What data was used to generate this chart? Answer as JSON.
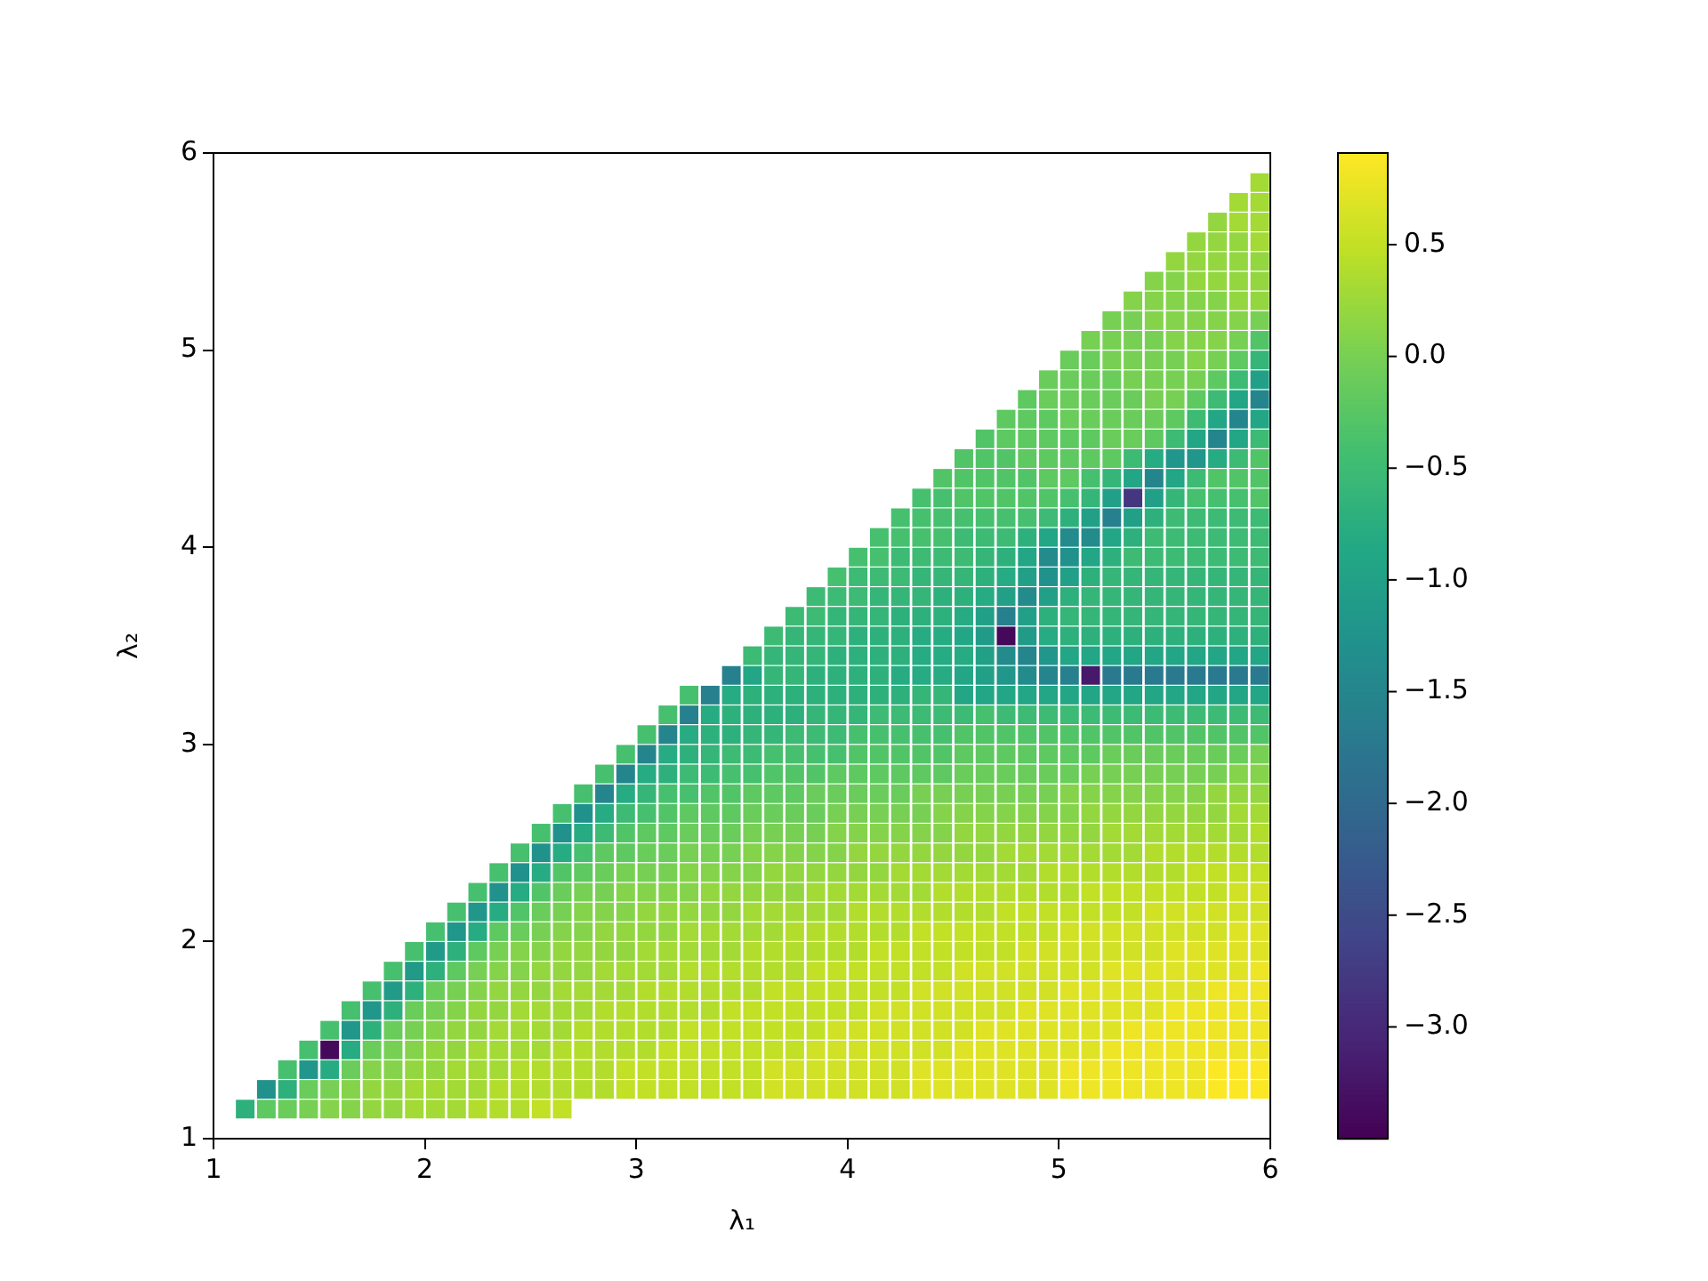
{
  "chart_data": {
    "type": "heatmap",
    "xlabel": "λ₁",
    "ylabel": "λ₂",
    "xlim": [
      1,
      6
    ],
    "ylim": [
      1,
      6
    ],
    "xticks": [
      1,
      2,
      3,
      4,
      5,
      6
    ],
    "yticks": [
      1,
      2,
      3,
      4,
      5,
      6
    ],
    "clim": [
      -3.5,
      0.91
    ],
    "cticks": [
      {
        "value": -3,
        "label": "−3.0"
      },
      {
        "value": -2.5,
        "label": "−2.5"
      },
      {
        "value": -2,
        "label": "−2.0"
      },
      {
        "value": -1.5,
        "label": "−1.5"
      },
      {
        "value": -1,
        "label": "−1.0"
      },
      {
        "value": -0.5,
        "label": "−0.5"
      },
      {
        "value": 0,
        "label": "0.0"
      },
      {
        "value": 0.5,
        "label": "0.5"
      }
    ],
    "x": [
      1.15,
      1.25,
      1.35,
      1.45,
      1.55,
      1.65,
      1.75,
      1.85,
      1.95,
      2.05,
      2.15,
      2.25,
      2.35,
      2.45,
      2.55,
      2.65,
      2.75,
      2.85,
      2.95,
      3.05,
      3.15,
      3.25,
      3.35,
      3.45,
      3.55,
      3.65,
      3.75,
      3.85,
      3.95,
      4.05,
      4.15,
      4.25,
      4.35,
      4.45,
      4.55,
      4.65,
      4.75,
      4.85,
      4.95,
      5.05,
      5.15,
      5.25,
      5.35,
      5.45,
      5.55,
      5.65,
      5.75,
      5.85,
      5.95
    ],
    "y": [
      5.85,
      5.75,
      5.65,
      5.55,
      5.45,
      5.35,
      5.25,
      5.15,
      5.05,
      4.95,
      4.85,
      4.75,
      4.65,
      4.55,
      4.45,
      4.35,
      4.25,
      4.15,
      4.05,
      3.95,
      3.85,
      3.75,
      3.65,
      3.55,
      3.45,
      3.35,
      3.25,
      3.15,
      3.05,
      2.95,
      2.85,
      2.75,
      2.65,
      2.55,
      2.45,
      2.35,
      2.25,
      2.15,
      2.05,
      1.95,
      1.85,
      1.75,
      1.65,
      1.55,
      1.45,
      1.35,
      1.25,
      1.15
    ],
    "cells": [
      [
        null,
        null,
        null,
        null,
        null,
        null,
        null,
        null,
        null,
        null,
        null,
        null,
        null,
        null,
        null,
        null,
        null,
        null,
        null,
        null,
        null,
        null,
        null,
        null,
        null,
        null,
        null,
        null,
        null,
        null,
        null,
        null,
        null,
        null,
        null,
        null,
        null,
        null,
        null,
        null,
        null,
        null,
        null,
        null,
        null,
        null,
        null,
        null,
        0.3
      ],
      [
        null,
        null,
        null,
        null,
        null,
        null,
        null,
        null,
        null,
        null,
        null,
        null,
        null,
        null,
        null,
        null,
        null,
        null,
        null,
        null,
        null,
        null,
        null,
        null,
        null,
        null,
        null,
        null,
        null,
        null,
        null,
        null,
        null,
        null,
        null,
        null,
        null,
        null,
        null,
        null,
        null,
        null,
        null,
        null,
        null,
        null,
        null,
        0.3,
        0.3
      ],
      [
        null,
        null,
        null,
        null,
        null,
        null,
        null,
        null,
        null,
        null,
        null,
        null,
        null,
        null,
        null,
        null,
        null,
        null,
        null,
        null,
        null,
        null,
        null,
        null,
        null,
        null,
        null,
        null,
        null,
        null,
        null,
        null,
        null,
        null,
        null,
        null,
        null,
        null,
        null,
        null,
        null,
        null,
        null,
        null,
        null,
        null,
        0.2,
        0.3,
        0.3
      ],
      [
        null,
        null,
        null,
        null,
        null,
        null,
        null,
        null,
        null,
        null,
        null,
        null,
        null,
        null,
        null,
        null,
        null,
        null,
        null,
        null,
        null,
        null,
        null,
        null,
        null,
        null,
        null,
        null,
        null,
        null,
        null,
        null,
        null,
        null,
        null,
        null,
        null,
        null,
        null,
        null,
        null,
        null,
        null,
        null,
        null,
        0.2,
        0.2,
        0.2,
        0.3
      ],
      [
        null,
        null,
        null,
        null,
        null,
        null,
        null,
        null,
        null,
        null,
        null,
        null,
        null,
        null,
        null,
        null,
        null,
        null,
        null,
        null,
        null,
        null,
        null,
        null,
        null,
        null,
        null,
        null,
        null,
        null,
        null,
        null,
        null,
        null,
        null,
        null,
        null,
        null,
        null,
        null,
        null,
        null,
        null,
        null,
        0.2,
        0.2,
        0.2,
        0.2,
        0.2
      ],
      [
        null,
        null,
        null,
        null,
        null,
        null,
        null,
        null,
        null,
        null,
        null,
        null,
        null,
        null,
        null,
        null,
        null,
        null,
        null,
        null,
        null,
        null,
        null,
        null,
        null,
        null,
        null,
        null,
        null,
        null,
        null,
        null,
        null,
        null,
        null,
        null,
        null,
        null,
        null,
        null,
        null,
        null,
        null,
        0.1,
        0.1,
        0.2,
        0.2,
        0.2,
        0.2
      ],
      [
        null,
        null,
        null,
        null,
        null,
        null,
        null,
        null,
        null,
        null,
        null,
        null,
        null,
        null,
        null,
        null,
        null,
        null,
        null,
        null,
        null,
        null,
        null,
        null,
        null,
        null,
        null,
        null,
        null,
        null,
        null,
        null,
        null,
        null,
        null,
        null,
        null,
        null,
        null,
        null,
        null,
        null,
        0.1,
        0.1,
        0.1,
        0.1,
        0.1,
        0.2,
        0.2
      ],
      [
        null,
        null,
        null,
        null,
        null,
        null,
        null,
        null,
        null,
        null,
        null,
        null,
        null,
        null,
        null,
        null,
        null,
        null,
        null,
        null,
        null,
        null,
        null,
        null,
        null,
        null,
        null,
        null,
        null,
        null,
        null,
        null,
        null,
        null,
        null,
        null,
        null,
        null,
        null,
        null,
        null,
        0.0,
        0.0,
        0.1,
        0.1,
        0.1,
        0.1,
        0.1,
        0.0
      ],
      [
        null,
        null,
        null,
        null,
        null,
        null,
        null,
        null,
        null,
        null,
        null,
        null,
        null,
        null,
        null,
        null,
        null,
        null,
        null,
        null,
        null,
        null,
        null,
        null,
        null,
        null,
        null,
        null,
        null,
        null,
        null,
        null,
        null,
        null,
        null,
        null,
        null,
        null,
        null,
        null,
        0.0,
        0.0,
        0.0,
        0.0,
        0.1,
        0.1,
        0.1,
        0.0,
        -0.3
      ],
      [
        null,
        null,
        null,
        null,
        null,
        null,
        null,
        null,
        null,
        null,
        null,
        null,
        null,
        null,
        null,
        null,
        null,
        null,
        null,
        null,
        null,
        null,
        null,
        null,
        null,
        null,
        null,
        null,
        null,
        null,
        null,
        null,
        null,
        null,
        null,
        null,
        null,
        null,
        null,
        -0.1,
        -0.1,
        0.0,
        0.0,
        0.0,
        0.0,
        0.1,
        0.0,
        -0.2,
        -0.6
      ],
      [
        null,
        null,
        null,
        null,
        null,
        null,
        null,
        null,
        null,
        null,
        null,
        null,
        null,
        null,
        null,
        null,
        null,
        null,
        null,
        null,
        null,
        null,
        null,
        null,
        null,
        null,
        null,
        null,
        null,
        null,
        null,
        null,
        null,
        null,
        null,
        null,
        null,
        null,
        -0.1,
        -0.1,
        -0.1,
        -0.1,
        0.0,
        0.0,
        0.0,
        0.0,
        -0.2,
        -0.5,
        -1.0
      ],
      [
        null,
        null,
        null,
        null,
        null,
        null,
        null,
        null,
        null,
        null,
        null,
        null,
        null,
        null,
        null,
        null,
        null,
        null,
        null,
        null,
        null,
        null,
        null,
        null,
        null,
        null,
        null,
        null,
        null,
        null,
        null,
        null,
        null,
        null,
        null,
        null,
        null,
        -0.2,
        -0.1,
        -0.1,
        -0.1,
        -0.1,
        -0.1,
        0.0,
        0.0,
        -0.2,
        -0.5,
        -0.9,
        -1.5
      ],
      [
        null,
        null,
        null,
        null,
        null,
        null,
        null,
        null,
        null,
        null,
        null,
        null,
        null,
        null,
        null,
        null,
        null,
        null,
        null,
        null,
        null,
        null,
        null,
        null,
        null,
        null,
        null,
        null,
        null,
        null,
        null,
        null,
        null,
        null,
        null,
        null,
        -0.2,
        -0.2,
        -0.2,
        -0.1,
        -0.1,
        -0.1,
        -0.1,
        -0.1,
        -0.2,
        -0.5,
        -0.9,
        -1.5,
        -0.9
      ],
      [
        null,
        null,
        null,
        null,
        null,
        null,
        null,
        null,
        null,
        null,
        null,
        null,
        null,
        null,
        null,
        null,
        null,
        null,
        null,
        null,
        null,
        null,
        null,
        null,
        null,
        null,
        null,
        null,
        null,
        null,
        null,
        null,
        null,
        null,
        null,
        -0.3,
        -0.2,
        -0.2,
        -0.2,
        -0.2,
        -0.2,
        -0.1,
        -0.1,
        -0.2,
        -0.5,
        -0.9,
        -1.5,
        -0.9,
        -0.5
      ],
      [
        null,
        null,
        null,
        null,
        null,
        null,
        null,
        null,
        null,
        null,
        null,
        null,
        null,
        null,
        null,
        null,
        null,
        null,
        null,
        null,
        null,
        null,
        null,
        null,
        null,
        null,
        null,
        null,
        null,
        null,
        null,
        null,
        null,
        null,
        -0.3,
        -0.3,
        -0.3,
        -0.2,
        -0.2,
        -0.2,
        -0.2,
        -0.2,
        -0.5,
        -0.8,
        -1.2,
        -1.2,
        -0.8,
        -0.5,
        -0.3
      ],
      [
        null,
        null,
        null,
        null,
        null,
        null,
        null,
        null,
        null,
        null,
        null,
        null,
        null,
        null,
        null,
        null,
        null,
        null,
        null,
        null,
        null,
        null,
        null,
        null,
        null,
        null,
        null,
        null,
        null,
        null,
        null,
        null,
        null,
        -0.3,
        -0.3,
        -0.3,
        -0.3,
        -0.3,
        -0.2,
        -0.2,
        -0.4,
        -0.6,
        -0.9,
        -1.5,
        -0.9,
        -0.5,
        -0.3,
        -0.3,
        -0.3
      ],
      [
        null,
        null,
        null,
        null,
        null,
        null,
        null,
        null,
        null,
        null,
        null,
        null,
        null,
        null,
        null,
        null,
        null,
        null,
        null,
        null,
        null,
        null,
        null,
        null,
        null,
        null,
        null,
        null,
        null,
        null,
        null,
        null,
        -0.4,
        -0.4,
        -0.3,
        -0.3,
        -0.3,
        -0.3,
        -0.3,
        -0.4,
        -0.6,
        -1.0,
        -2.8,
        -1.0,
        -0.6,
        -0.4,
        -0.4,
        -0.4,
        -0.3
      ],
      [
        null,
        null,
        null,
        null,
        null,
        null,
        null,
        null,
        null,
        null,
        null,
        null,
        null,
        null,
        null,
        null,
        null,
        null,
        null,
        null,
        null,
        null,
        null,
        null,
        null,
        null,
        null,
        null,
        null,
        null,
        null,
        -0.4,
        -0.4,
        -0.4,
        -0.4,
        -0.4,
        -0.4,
        -0.4,
        -0.5,
        -0.7,
        -1.0,
        -1.6,
        -1.0,
        -0.7,
        -0.5,
        -0.5,
        -0.5,
        -0.5,
        -0.5
      ],
      [
        null,
        null,
        null,
        null,
        null,
        null,
        null,
        null,
        null,
        null,
        null,
        null,
        null,
        null,
        null,
        null,
        null,
        null,
        null,
        null,
        null,
        null,
        null,
        null,
        null,
        null,
        null,
        null,
        null,
        null,
        -0.4,
        -0.4,
        -0.4,
        -0.4,
        -0.5,
        -0.5,
        -0.5,
        -0.7,
        -0.9,
        -1.4,
        -1.4,
        -0.9,
        -0.7,
        -0.5,
        -0.5,
        -0.5,
        -0.5,
        -0.5,
        -0.5
      ],
      [
        null,
        null,
        null,
        null,
        null,
        null,
        null,
        null,
        null,
        null,
        null,
        null,
        null,
        null,
        null,
        null,
        null,
        null,
        null,
        null,
        null,
        null,
        null,
        null,
        null,
        null,
        null,
        null,
        null,
        -0.4,
        -0.4,
        -0.5,
        -0.5,
        -0.5,
        -0.5,
        -0.6,
        -0.7,
        -0.9,
        -1.4,
        -1.3,
        -0.9,
        -0.7,
        -0.5,
        -0.5,
        -0.5,
        -0.5,
        -0.5,
        -0.5,
        -0.5
      ],
      [
        null,
        null,
        null,
        null,
        null,
        null,
        null,
        null,
        null,
        null,
        null,
        null,
        null,
        null,
        null,
        null,
        null,
        null,
        null,
        null,
        null,
        null,
        null,
        null,
        null,
        null,
        null,
        null,
        -0.4,
        -0.5,
        -0.5,
        -0.5,
        -0.6,
        -0.6,
        -0.6,
        -0.7,
        -0.8,
        -1.0,
        -1.3,
        -1.0,
        -0.7,
        -0.6,
        -0.6,
        -0.6,
        -0.6,
        -0.6,
        -0.6,
        -0.6,
        -0.6
      ],
      [
        null,
        null,
        null,
        null,
        null,
        null,
        null,
        null,
        null,
        null,
        null,
        null,
        null,
        null,
        null,
        null,
        null,
        null,
        null,
        null,
        null,
        null,
        null,
        null,
        null,
        null,
        null,
        -0.5,
        -0.5,
        -0.5,
        -0.6,
        -0.6,
        -0.6,
        -0.7,
        -0.7,
        -0.8,
        -1.0,
        -1.4,
        -1.0,
        -0.7,
        -0.6,
        -0.6,
        -0.6,
        -0.6,
        -0.6,
        -0.6,
        -0.6,
        -0.6,
        -0.6
      ],
      [
        null,
        null,
        null,
        null,
        null,
        null,
        null,
        null,
        null,
        null,
        null,
        null,
        null,
        null,
        null,
        null,
        null,
        null,
        null,
        null,
        null,
        null,
        null,
        null,
        null,
        null,
        -0.5,
        -0.5,
        -0.6,
        -0.6,
        -0.6,
        -0.7,
        -0.7,
        -0.7,
        -0.8,
        -1.0,
        -1.6,
        -1.0,
        -0.7,
        -0.6,
        -0.6,
        -0.6,
        -0.6,
        -0.6,
        -0.6,
        -0.6,
        -0.6,
        -0.6,
        -0.6
      ],
      [
        null,
        null,
        null,
        null,
        null,
        null,
        null,
        null,
        null,
        null,
        null,
        null,
        null,
        null,
        null,
        null,
        null,
        null,
        null,
        null,
        null,
        null,
        null,
        null,
        null,
        -0.5,
        -0.6,
        -0.6,
        -0.6,
        -0.7,
        -0.7,
        -0.7,
        -0.8,
        -0.8,
        -0.9,
        -1.1,
        -3.4,
        -1.1,
        -0.8,
        -0.7,
        -0.7,
        -0.7,
        -0.7,
        -0.7,
        -0.7,
        -0.7,
        -0.7,
        -0.7,
        -0.7
      ],
      [
        null,
        null,
        null,
        null,
        null,
        null,
        null,
        null,
        null,
        null,
        null,
        null,
        null,
        null,
        null,
        null,
        null,
        null,
        null,
        null,
        null,
        null,
        null,
        null,
        -0.5,
        -0.6,
        -0.6,
        -0.6,
        -0.7,
        -0.7,
        -0.7,
        -0.7,
        -0.8,
        -0.8,
        -0.8,
        -1.0,
        -1.4,
        -1.5,
        -1.2,
        -0.9,
        -0.9,
        -0.9,
        -0.9,
        -0.9,
        -0.9,
        -0.9,
        -0.9,
        -0.9,
        -0.9
      ],
      [
        null,
        null,
        null,
        null,
        null,
        null,
        null,
        null,
        null,
        null,
        null,
        null,
        null,
        null,
        null,
        null,
        null,
        null,
        null,
        null,
        null,
        null,
        null,
        -1.6,
        -0.9,
        -0.6,
        -0.6,
        -0.7,
        -0.7,
        -0.7,
        -0.7,
        -0.8,
        -0.8,
        -0.8,
        -0.9,
        -1.0,
        -1.2,
        -1.4,
        -1.5,
        -1.6,
        -3.2,
        -1.7,
        -1.7,
        -1.7,
        -1.7,
        -1.7,
        -1.7,
        -1.7,
        -1.7
      ],
      [
        null,
        null,
        null,
        null,
        null,
        null,
        null,
        null,
        null,
        null,
        null,
        null,
        null,
        null,
        null,
        null,
        null,
        null,
        null,
        null,
        null,
        -0.4,
        -1.6,
        -0.8,
        -0.7,
        -0.7,
        -0.7,
        -0.7,
        -0.7,
        -0.7,
        -0.7,
        -0.7,
        -0.6,
        -0.6,
        -0.9,
        -0.9,
        -0.9,
        -0.9,
        -0.9,
        -0.9,
        -0.9,
        -0.9,
        -0.9,
        -0.9,
        -0.9,
        -0.9,
        -0.9,
        -0.9,
        -0.9
      ],
      [
        null,
        null,
        null,
        null,
        null,
        null,
        null,
        null,
        null,
        null,
        null,
        null,
        null,
        null,
        null,
        null,
        null,
        null,
        null,
        null,
        -0.4,
        -1.6,
        -0.8,
        -0.7,
        -0.7,
        -0.7,
        -0.7,
        -0.6,
        -0.6,
        -0.6,
        -0.5,
        -0.5,
        -0.5,
        -0.5,
        -0.5,
        -0.4,
        -0.5,
        -0.5,
        -0.5,
        -0.5,
        -0.5,
        -0.5,
        -0.5,
        -0.5,
        -0.5,
        -0.5,
        -0.5,
        -0.5,
        -0.5
      ],
      [
        null,
        null,
        null,
        null,
        null,
        null,
        null,
        null,
        null,
        null,
        null,
        null,
        null,
        null,
        null,
        null,
        null,
        null,
        null,
        -0.4,
        -1.5,
        -0.8,
        -0.7,
        -0.7,
        -0.6,
        -0.6,
        -0.5,
        -0.5,
        -0.5,
        -0.4,
        -0.4,
        -0.4,
        -0.4,
        -0.4,
        -0.3,
        -0.3,
        -0.3,
        -0.3,
        -0.3,
        -0.3,
        -0.3,
        -0.3,
        -0.3,
        -0.3,
        -0.3,
        -0.3,
        -0.3,
        -0.3,
        -0.3
      ],
      [
        null,
        null,
        null,
        null,
        null,
        null,
        null,
        null,
        null,
        null,
        null,
        null,
        null,
        null,
        null,
        null,
        null,
        null,
        -0.4,
        -1.5,
        -0.8,
        -0.7,
        -0.6,
        -0.5,
        -0.5,
        -0.4,
        -0.4,
        -0.4,
        -0.4,
        -0.3,
        -0.3,
        -0.3,
        -0.3,
        -0.3,
        -0.2,
        -0.2,
        -0.2,
        -0.2,
        -0.2,
        -0.2,
        -0.2,
        -0.1,
        -0.1,
        -0.1,
        -0.1,
        -0.1,
        -0.1,
        -0.1,
        0.0
      ],
      [
        null,
        null,
        null,
        null,
        null,
        null,
        null,
        null,
        null,
        null,
        null,
        null,
        null,
        null,
        null,
        null,
        null,
        -0.4,
        -1.5,
        -0.8,
        -0.7,
        -0.5,
        -0.5,
        -0.4,
        -0.4,
        -0.3,
        -0.3,
        -0.3,
        -0.2,
        -0.2,
        -0.2,
        -0.2,
        -0.2,
        -0.2,
        -0.1,
        -0.1,
        -0.1,
        -0.1,
        -0.1,
        -0.1,
        0.0,
        0.0,
        0.0,
        0.0,
        0.0,
        0.0,
        0.0,
        0.1,
        0.1
      ],
      [
        null,
        null,
        null,
        null,
        null,
        null,
        null,
        null,
        null,
        null,
        null,
        null,
        null,
        null,
        null,
        null,
        -0.4,
        -1.5,
        -0.8,
        -0.6,
        -0.4,
        -0.4,
        -0.3,
        -0.3,
        -0.2,
        -0.2,
        -0.2,
        -0.1,
        -0.1,
        -0.1,
        -0.1,
        -0.1,
        0.0,
        0.0,
        0.0,
        0.0,
        0.0,
        0.0,
        0.0,
        0.1,
        0.1,
        0.1,
        0.1,
        0.1,
        0.1,
        0.1,
        0.2,
        0.2,
        0.2
      ],
      [
        null,
        null,
        null,
        null,
        null,
        null,
        null,
        null,
        null,
        null,
        null,
        null,
        null,
        null,
        null,
        -0.4,
        -1.3,
        -0.8,
        -0.5,
        -0.4,
        -0.3,
        -0.2,
        -0.2,
        -0.2,
        -0.1,
        -0.1,
        -0.1,
        -0.1,
        0.0,
        0.0,
        0.0,
        0.0,
        0.0,
        0.1,
        0.1,
        0.1,
        0.1,
        0.1,
        0.1,
        0.1,
        0.2,
        0.2,
        0.2,
        0.2,
        0.2,
        0.2,
        0.2,
        0.3,
        0.3
      ],
      [
        null,
        null,
        null,
        null,
        null,
        null,
        null,
        null,
        null,
        null,
        null,
        null,
        null,
        null,
        -0.4,
        -1.3,
        -0.8,
        -0.5,
        -0.3,
        -0.2,
        -0.2,
        -0.1,
        -0.1,
        -0.1,
        0.0,
        0.0,
        0.0,
        0.0,
        0.1,
        0.1,
        0.1,
        0.1,
        0.1,
        0.1,
        0.2,
        0.2,
        0.2,
        0.2,
        0.2,
        0.2,
        0.2,
        0.3,
        0.3,
        0.3,
        0.3,
        0.3,
        0.3,
        0.3,
        0.4
      ],
      [
        null,
        null,
        null,
        null,
        null,
        null,
        null,
        null,
        null,
        null,
        null,
        null,
        null,
        -0.4,
        -1.3,
        -0.8,
        -0.4,
        -0.2,
        -0.2,
        -0.1,
        -0.1,
        0.0,
        0.0,
        0.0,
        0.1,
        0.1,
        0.1,
        0.1,
        0.1,
        0.2,
        0.2,
        0.2,
        0.2,
        0.2,
        0.2,
        0.2,
        0.3,
        0.3,
        0.3,
        0.3,
        0.3,
        0.3,
        0.3,
        0.4,
        0.4,
        0.4,
        0.4,
        0.4,
        0.4
      ],
      [
        null,
        null,
        null,
        null,
        null,
        null,
        null,
        null,
        null,
        null,
        null,
        null,
        -0.4,
        -1.3,
        -0.8,
        -0.3,
        -0.2,
        -0.1,
        0.0,
        0.0,
        0.0,
        0.1,
        0.1,
        0.1,
        0.1,
        0.2,
        0.2,
        0.2,
        0.2,
        0.2,
        0.2,
        0.3,
        0.3,
        0.3,
        0.3,
        0.3,
        0.3,
        0.3,
        0.4,
        0.4,
        0.4,
        0.4,
        0.4,
        0.4,
        0.4,
        0.5,
        0.5,
        0.5,
        0.5
      ],
      [
        null,
        null,
        null,
        null,
        null,
        null,
        null,
        null,
        null,
        null,
        null,
        -0.4,
        -1.3,
        -0.8,
        -0.3,
        -0.1,
        0.0,
        0.0,
        0.1,
        0.1,
        0.1,
        0.1,
        0.2,
        0.2,
        0.2,
        0.2,
        0.2,
        0.3,
        0.3,
        0.3,
        0.3,
        0.3,
        0.3,
        0.4,
        0.4,
        0.4,
        0.4,
        0.4,
        0.4,
        0.4,
        0.5,
        0.5,
        0.5,
        0.5,
        0.5,
        0.5,
        0.5,
        0.6,
        0.6
      ],
      [
        null,
        null,
        null,
        null,
        null,
        null,
        null,
        null,
        null,
        null,
        -0.4,
        -1.2,
        -0.8,
        -0.3,
        -0.1,
        0.0,
        0.1,
        0.1,
        0.1,
        0.2,
        0.2,
        0.2,
        0.2,
        0.2,
        0.3,
        0.3,
        0.3,
        0.3,
        0.3,
        0.4,
        0.4,
        0.4,
        0.4,
        0.4,
        0.4,
        0.4,
        0.5,
        0.5,
        0.5,
        0.5,
        0.5,
        0.5,
        0.5,
        0.6,
        0.6,
        0.6,
        0.6,
        0.6,
        0.6
      ],
      [
        null,
        null,
        null,
        null,
        null,
        null,
        null,
        null,
        null,
        -0.4,
        -1.2,
        -0.8,
        -0.2,
        -0.1,
        0.0,
        0.1,
        0.1,
        0.2,
        0.2,
        0.2,
        0.2,
        0.3,
        0.3,
        0.3,
        0.3,
        0.3,
        0.4,
        0.4,
        0.4,
        0.4,
        0.4,
        0.4,
        0.5,
        0.5,
        0.5,
        0.5,
        0.5,
        0.5,
        0.5,
        0.6,
        0.6,
        0.6,
        0.6,
        0.6,
        0.6,
        0.6,
        0.6,
        0.7,
        0.7
      ],
      [
        null,
        null,
        null,
        null,
        null,
        null,
        null,
        null,
        -0.4,
        -1.1,
        -0.7,
        -0.2,
        0.0,
        0.1,
        0.1,
        0.2,
        0.2,
        0.2,
        0.2,
        0.3,
        0.3,
        0.3,
        0.3,
        0.3,
        0.4,
        0.4,
        0.4,
        0.4,
        0.4,
        0.4,
        0.5,
        0.5,
        0.5,
        0.5,
        0.5,
        0.5,
        0.5,
        0.6,
        0.6,
        0.6,
        0.6,
        0.6,
        0.6,
        0.6,
        0.7,
        0.7,
        0.7,
        0.7,
        0.7
      ],
      [
        null,
        null,
        null,
        null,
        null,
        null,
        null,
        -0.4,
        -1.1,
        -0.7,
        -0.2,
        0.0,
        0.1,
        0.1,
        0.2,
        0.2,
        0.2,
        0.3,
        0.3,
        0.3,
        0.3,
        0.4,
        0.4,
        0.4,
        0.4,
        0.4,
        0.4,
        0.5,
        0.5,
        0.5,
        0.5,
        0.5,
        0.5,
        0.5,
        0.6,
        0.6,
        0.6,
        0.6,
        0.6,
        0.6,
        0.6,
        0.7,
        0.7,
        0.7,
        0.7,
        0.7,
        0.7,
        0.7,
        0.8
      ],
      [
        null,
        null,
        null,
        null,
        null,
        null,
        -0.4,
        -1.1,
        -0.7,
        -0.1,
        0.0,
        0.1,
        0.2,
        0.2,
        0.2,
        0.3,
        0.3,
        0.3,
        0.3,
        0.4,
        0.4,
        0.4,
        0.4,
        0.4,
        0.4,
        0.5,
        0.5,
        0.5,
        0.5,
        0.5,
        0.5,
        0.5,
        0.6,
        0.6,
        0.6,
        0.6,
        0.6,
        0.6,
        0.6,
        0.7,
        0.7,
        0.7,
        0.7,
        0.7,
        0.7,
        0.7,
        0.8,
        0.8,
        0.8
      ],
      [
        null,
        null,
        null,
        null,
        null,
        -0.4,
        -1.2,
        -0.7,
        -0.1,
        0.0,
        0.1,
        0.2,
        0.2,
        0.3,
        0.3,
        0.3,
        0.3,
        0.4,
        0.4,
        0.4,
        0.4,
        0.4,
        0.4,
        0.5,
        0.5,
        0.5,
        0.5,
        0.5,
        0.5,
        0.5,
        0.6,
        0.6,
        0.6,
        0.6,
        0.6,
        0.6,
        0.6,
        0.7,
        0.7,
        0.7,
        0.7,
        0.7,
        0.7,
        0.7,
        0.8,
        0.8,
        0.8,
        0.8,
        0.8
      ],
      [
        null,
        null,
        null,
        null,
        -0.4,
        -1.2,
        -0.7,
        -0.1,
        0.0,
        0.1,
        0.2,
        0.2,
        0.3,
        0.3,
        0.3,
        0.3,
        0.4,
        0.4,
        0.4,
        0.4,
        0.4,
        0.5,
        0.5,
        0.5,
        0.5,
        0.5,
        0.5,
        0.5,
        0.6,
        0.6,
        0.6,
        0.6,
        0.6,
        0.6,
        0.6,
        0.7,
        0.7,
        0.7,
        0.7,
        0.7,
        0.7,
        0.7,
        0.8,
        0.8,
        0.8,
        0.8,
        0.8,
        0.8,
        0.8
      ],
      [
        null,
        null,
        null,
        -0.4,
        -3.4,
        -0.8,
        -0.1,
        0.0,
        0.1,
        0.2,
        0.2,
        0.3,
        0.3,
        0.3,
        0.3,
        0.4,
        0.4,
        0.4,
        0.4,
        0.4,
        0.5,
        0.5,
        0.5,
        0.5,
        0.5,
        0.5,
        0.5,
        0.6,
        0.6,
        0.6,
        0.6,
        0.6,
        0.6,
        0.6,
        0.7,
        0.7,
        0.7,
        0.7,
        0.7,
        0.7,
        0.7,
        0.8,
        0.8,
        0.8,
        0.8,
        0.8,
        0.8,
        0.8,
        0.8
      ],
      [
        null,
        null,
        -0.4,
        -1.2,
        -0.8,
        -0.1,
        0.1,
        0.1,
        0.2,
        0.2,
        0.3,
        0.3,
        0.3,
        0.4,
        0.4,
        0.4,
        0.4,
        0.4,
        0.5,
        0.5,
        0.5,
        0.5,
        0.5,
        0.5,
        0.5,
        0.6,
        0.6,
        0.6,
        0.6,
        0.6,
        0.6,
        0.6,
        0.7,
        0.7,
        0.7,
        0.7,
        0.7,
        0.7,
        0.7,
        0.8,
        0.8,
        0.8,
        0.8,
        0.8,
        0.8,
        0.8,
        0.9,
        0.9,
        0.9
      ],
      [
        null,
        -1.3,
        -0.7,
        -0.1,
        0.0,
        0.1,
        0.2,
        0.2,
        0.3,
        0.3,
        0.3,
        0.3,
        0.4,
        0.4,
        0.4,
        0.4,
        0.4,
        0.4,
        0.5,
        0.5,
        0.5,
        0.5,
        0.5,
        0.5,
        0.5,
        0.6,
        0.6,
        0.6,
        0.6,
        0.6,
        0.6,
        0.6,
        0.7,
        0.7,
        0.7,
        0.7,
        0.7,
        0.7,
        0.7,
        0.8,
        0.8,
        0.8,
        0.8,
        0.8,
        0.8,
        0.8,
        0.9,
        0.9,
        0.9
      ],
      [
        -0.7,
        -0.2,
        -0.1,
        0.0,
        0.1,
        0.1,
        0.2,
        0.2,
        0.3,
        0.3,
        0.3,
        0.4,
        0.4,
        0.4,
        0.5,
        0.5,
        null,
        null,
        null,
        null,
        null,
        null,
        null,
        null,
        null,
        null,
        null,
        null,
        null,
        null,
        null,
        null,
        null,
        null,
        null,
        null,
        null,
        null,
        null,
        null,
        null,
        null,
        null,
        null,
        null,
        null,
        null,
        null,
        null
      ]
    ]
  }
}
